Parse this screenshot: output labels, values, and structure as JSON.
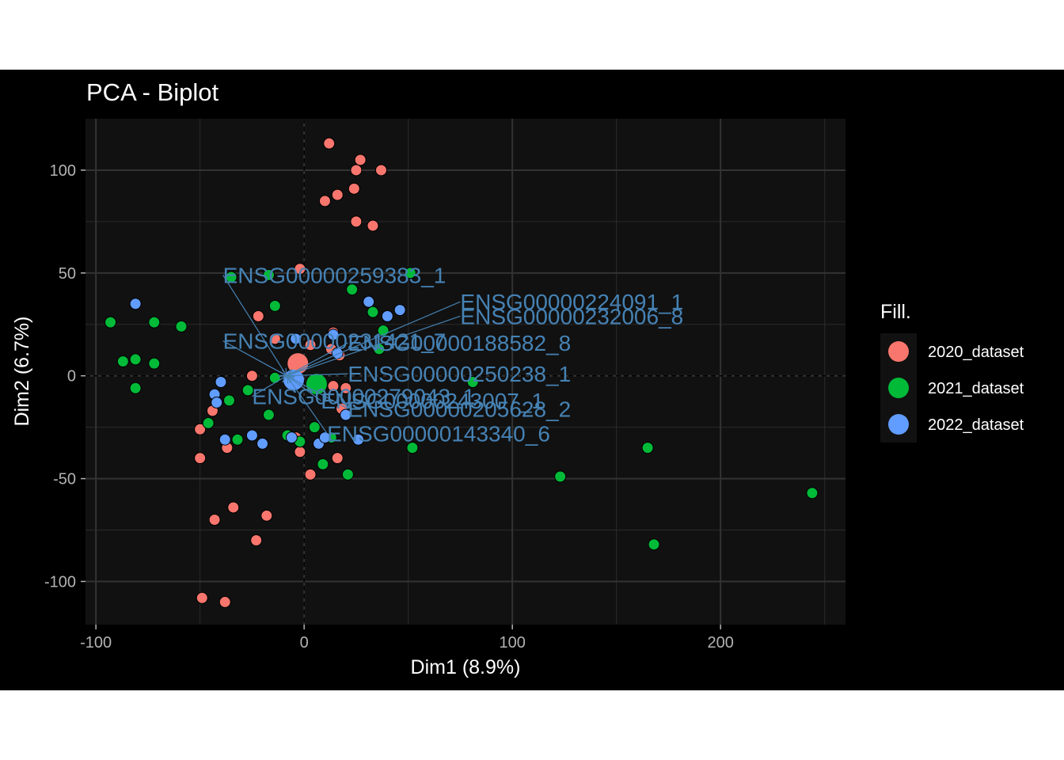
{
  "chart_data": {
    "type": "scatter",
    "title": "PCA - Biplot",
    "xlabel": "Dim1 (8.9%)",
    "ylabel": "Dim2 (6.7%)",
    "xlim": [
      -105,
      260
    ],
    "ylim": [
      -121,
      125
    ],
    "xticks": [
      -100,
      0,
      100,
      200
    ],
    "xtick_labels": [
      "-100",
      "0",
      "100",
      "200"
    ],
    "yticks": [
      100,
      50,
      0,
      -50,
      -100
    ],
    "ytick_labels": [
      "100",
      "50",
      "0",
      "-50",
      "-100"
    ],
    "grid": true,
    "legend": {
      "title": "Fill.",
      "position": "right"
    },
    "series": [
      {
        "name": "2020_dataset",
        "color": "#F8766D",
        "mean": [
          -3,
          6
        ],
        "points": [
          [
            12,
            113
          ],
          [
            27,
            105
          ],
          [
            37,
            100
          ],
          [
            25,
            100
          ],
          [
            16,
            88
          ],
          [
            10,
            85
          ],
          [
            24,
            91
          ],
          [
            25,
            75
          ],
          [
            33,
            73
          ],
          [
            -2,
            52
          ],
          [
            -22,
            29
          ],
          [
            -14,
            18
          ],
          [
            3,
            15
          ],
          [
            14,
            21
          ],
          [
            13,
            13
          ],
          [
            17,
            10
          ],
          [
            14,
            -5
          ],
          [
            20,
            -6
          ],
          [
            18,
            -16
          ],
          [
            -25,
            0
          ],
          [
            -44,
            -17
          ],
          [
            -50,
            -26
          ],
          [
            -50,
            -40
          ],
          [
            -37,
            -35
          ],
          [
            -4,
            -30
          ],
          [
            -2,
            -37
          ],
          [
            16,
            -40
          ],
          [
            3,
            -48
          ],
          [
            -34,
            -64
          ],
          [
            -43,
            -70
          ],
          [
            -18,
            -68
          ],
          [
            -23,
            -80
          ],
          [
            -49,
            -108
          ],
          [
            -38,
            -110
          ]
        ]
      },
      {
        "name": "2021_dataset",
        "color": "#00BA38",
        "mean": [
          6,
          -4
        ],
        "points": [
          [
            -35,
            48
          ],
          [
            -17,
            49
          ],
          [
            -14,
            34
          ],
          [
            23,
            42
          ],
          [
            33,
            31
          ],
          [
            38,
            22
          ],
          [
            51,
            50
          ],
          [
            36,
            13
          ],
          [
            -93,
            26
          ],
          [
            -72,
            26
          ],
          [
            -59,
            24
          ],
          [
            -81,
            8
          ],
          [
            -87,
            7
          ],
          [
            -72,
            6
          ],
          [
            -81,
            -6
          ],
          [
            -14,
            -1
          ],
          [
            -27,
            -7
          ],
          [
            -36,
            -12
          ],
          [
            -46,
            -23
          ],
          [
            -32,
            -31
          ],
          [
            -17,
            -19
          ],
          [
            -8,
            -29
          ],
          [
            5,
            -25
          ],
          [
            13,
            -30
          ],
          [
            -2,
            -32
          ],
          [
            9,
            -43
          ],
          [
            21,
            -48
          ],
          [
            52,
            -35
          ],
          [
            81,
            -3
          ],
          [
            123,
            -49
          ],
          [
            165,
            -35
          ],
          [
            168,
            -82
          ],
          [
            244,
            -57
          ]
        ]
      },
      {
        "name": "2022_dataset",
        "color": "#619CFF",
        "mean": [
          -5,
          -2
        ],
        "points": [
          [
            -81,
            35
          ],
          [
            31,
            36
          ],
          [
            40,
            29
          ],
          [
            46,
            32
          ],
          [
            -4,
            18
          ],
          [
            14,
            20
          ],
          [
            16,
            11
          ],
          [
            -40,
            -3
          ],
          [
            -43,
            -9
          ],
          [
            -42,
            -13
          ],
          [
            -38,
            -31
          ],
          [
            -25,
            -29
          ],
          [
            -20,
            -33
          ],
          [
            -6,
            -30
          ],
          [
            7,
            -33
          ],
          [
            10,
            -30
          ],
          [
            20,
            -19
          ],
          [
            26,
            -31
          ]
        ]
      }
    ],
    "variables": [
      {
        "name": "ENSG00000259383_1",
        "end": [
          -39,
          49
        ]
      },
      {
        "name": "ENSG00000224091_1",
        "end": [
          75,
          36
        ]
      },
      {
        "name": "ENSG00000232006_8",
        "end": [
          75,
          29
        ]
      },
      {
        "name": "ENSG00000231421_7",
        "end": [
          -39,
          17
        ]
      },
      {
        "name": "ENSG00000188582_8",
        "end": [
          21,
          16
        ]
      },
      {
        "name": "ENSG00000279043_1",
        "end": [
          -25,
          -10
        ]
      },
      {
        "name": "ENSG00000250238_1",
        "end": [
          21,
          1
        ]
      },
      {
        "name": "ENSG00000243007_1",
        "end": [
          8,
          -12
        ]
      },
      {
        "name": "ENSG00000205628_2",
        "end": [
          21,
          -16
        ]
      },
      {
        "name": "ENSG00000143340_6",
        "end": [
          11,
          -28
        ]
      }
    ]
  }
}
